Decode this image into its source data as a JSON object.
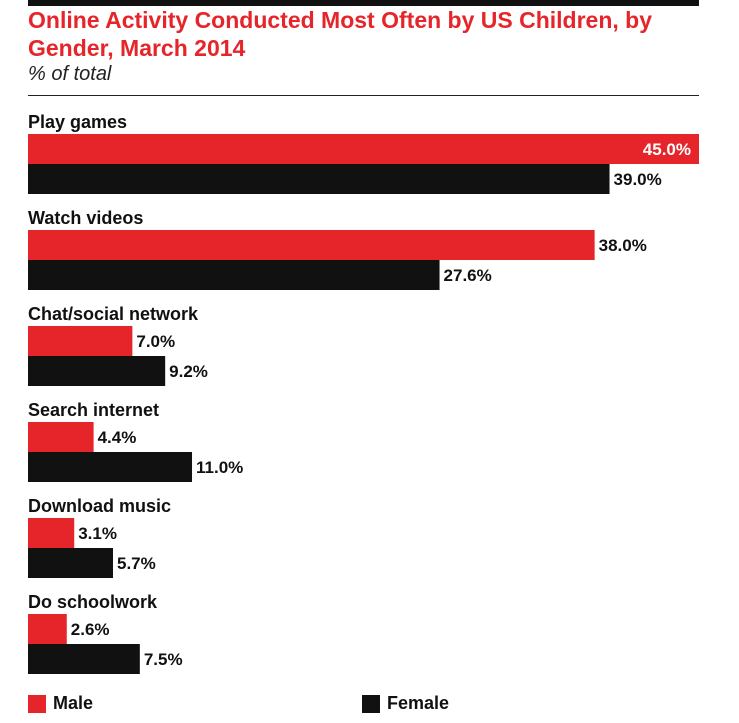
{
  "chart_data": {
    "type": "bar",
    "orientation": "horizontal",
    "title": "Online Activity Conducted Most Often by US Children, by Gender, March 2014",
    "subtitle": "% of total",
    "categories": [
      "Play games",
      "Watch videos",
      "Chat/social network",
      "Search internet",
      "Download music",
      "Do schoolwork"
    ],
    "series": [
      {
        "name": "Male",
        "color": "#e5252a",
        "values": [
          45.0,
          38.0,
          7.0,
          4.4,
          3.1,
          2.6
        ]
      },
      {
        "name": "Female",
        "color": "#111111",
        "values": [
          39.0,
          27.6,
          9.2,
          11.0,
          5.7,
          7.5
        ]
      }
    ],
    "xlim": [
      0,
      45
    ],
    "value_suffix": "%",
    "legend_position": "bottom",
    "grid": false
  }
}
